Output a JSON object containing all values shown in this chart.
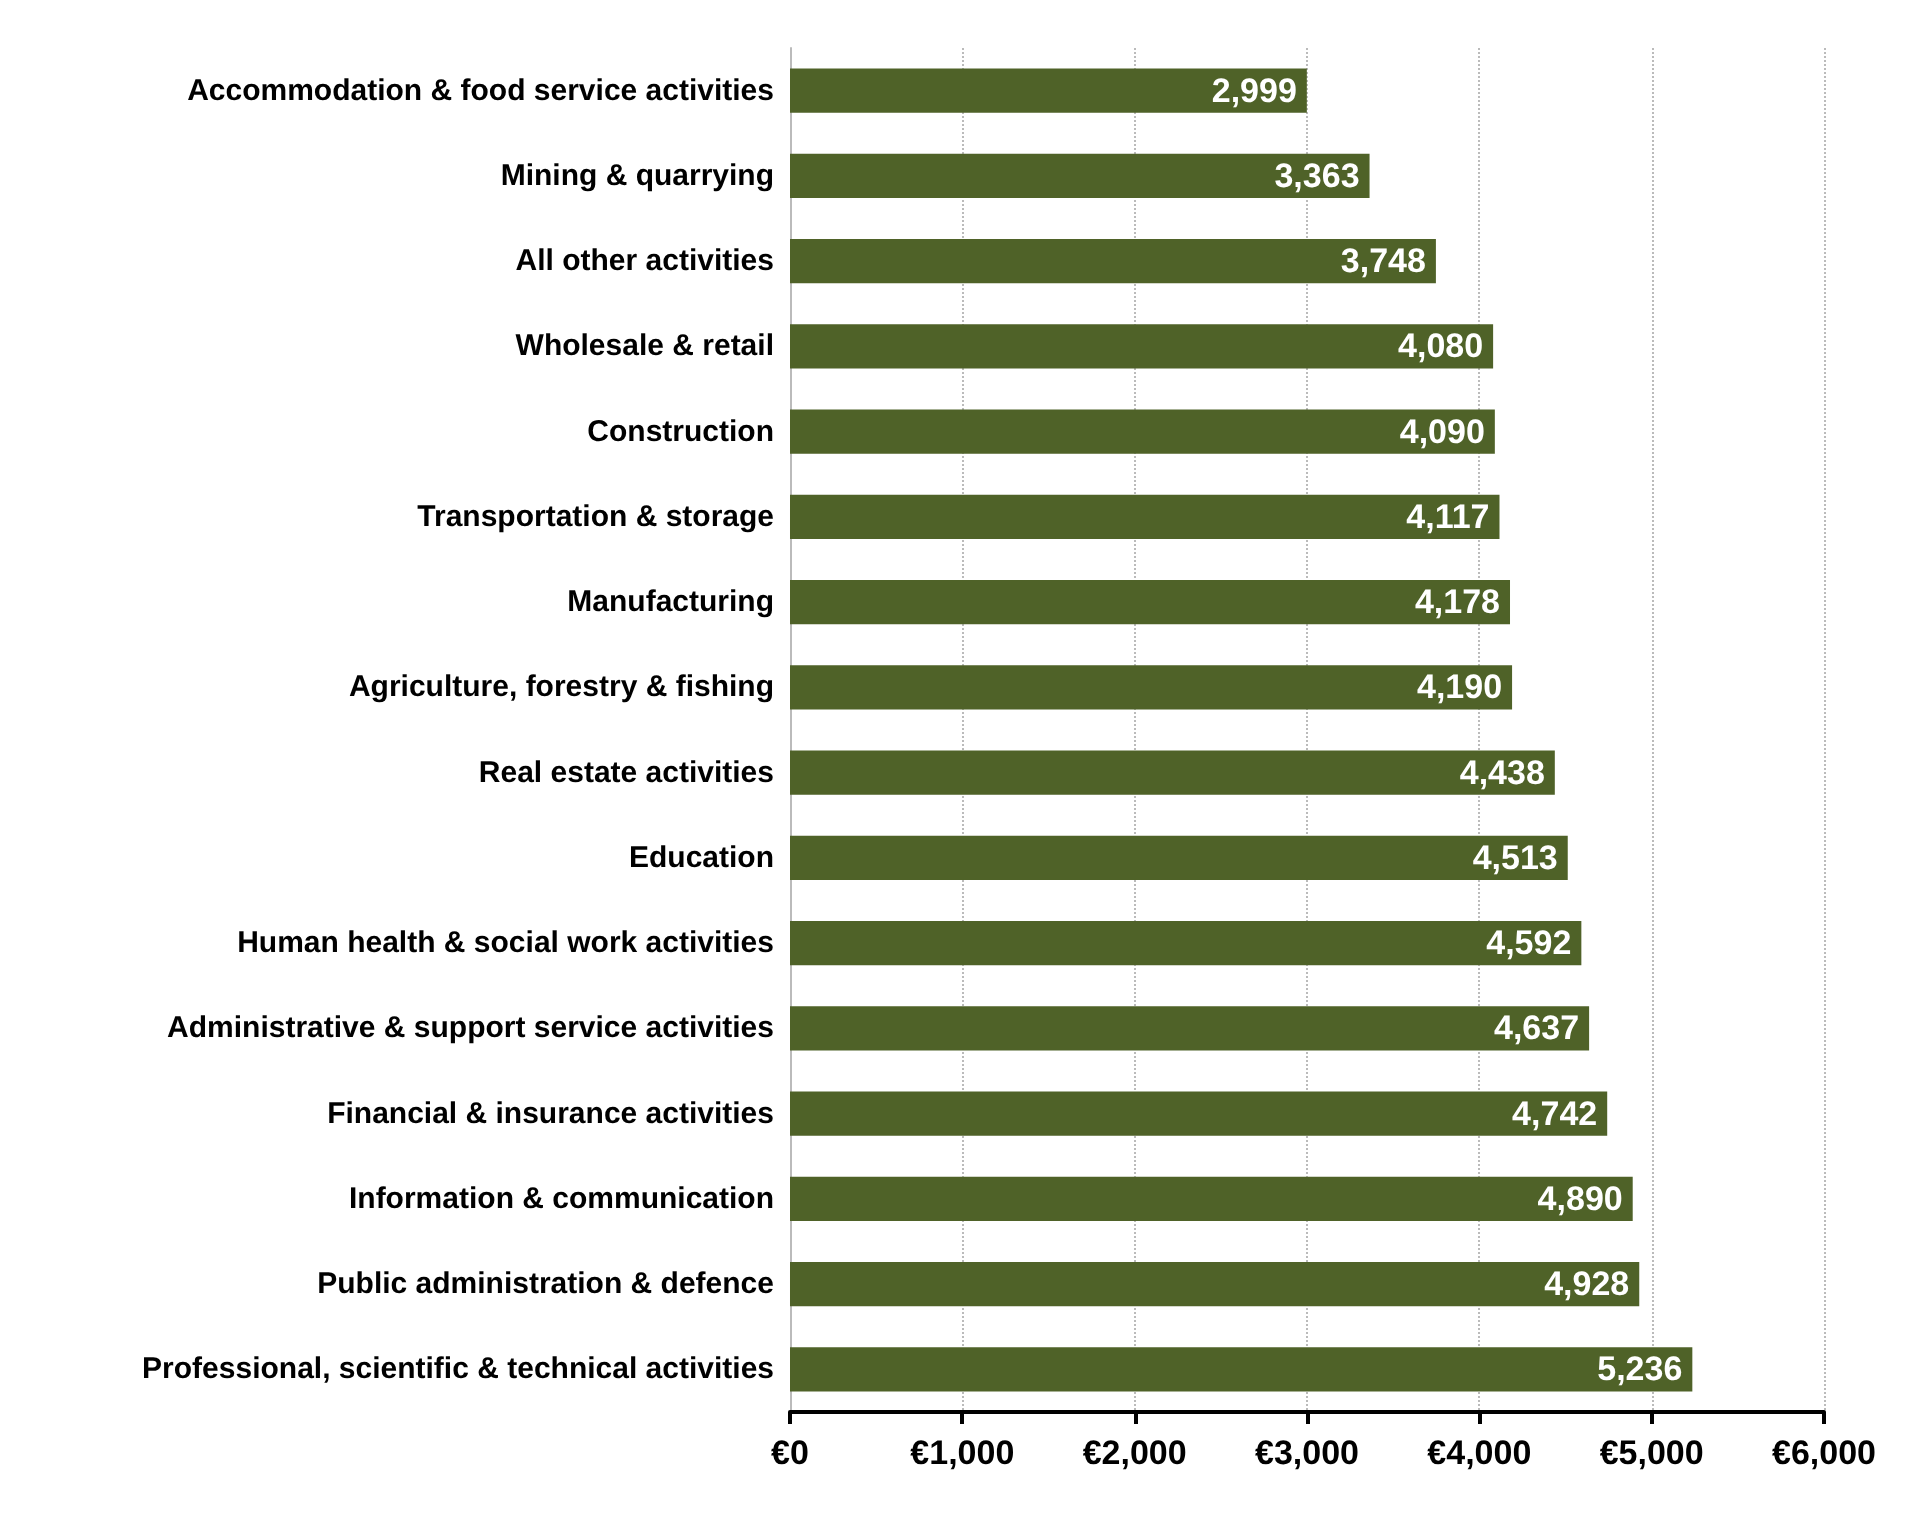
{
  "chart_data": {
    "type": "bar",
    "orientation": "horizontal",
    "categories": [
      "Accommodation & food service activities",
      "Mining & quarrying",
      "All other activities",
      "Wholesale & retail",
      "Construction",
      "Transportation & storage",
      "Manufacturing",
      "Agriculture, forestry & fishing",
      "Real estate activities",
      "Education",
      "Human health & social work activities",
      "Administrative & support service activities",
      "Financial & insurance activities",
      "Information & communication",
      "Public administration & defence",
      "Professional, scientific & technical activities"
    ],
    "values": [
      2999,
      3363,
      3748,
      4080,
      4090,
      4117,
      4178,
      4190,
      4438,
      4513,
      4592,
      4637,
      4742,
      4890,
      4928,
      5236
    ],
    "value_labels": [
      "2,999",
      "3,363",
      "3,748",
      "4,080",
      "4,090",
      "4,117",
      "4,178",
      "4,190",
      "4,438",
      "4,513",
      "4,592",
      "4,637",
      "4,742",
      "4,890",
      "4,928",
      "5,236"
    ],
    "color": "#4f6228",
    "xlim": [
      0,
      6000
    ],
    "xticks": [
      {
        "value": 0,
        "label": "€0"
      },
      {
        "value": 1000,
        "label": "€1,000"
      },
      {
        "value": 2000,
        "label": "€2,000"
      },
      {
        "value": 3000,
        "label": "€3,000"
      },
      {
        "value": 4000,
        "label": "€4,000"
      },
      {
        "value": 5000,
        "label": "€5,000"
      },
      {
        "value": 6000,
        "label": "€6,000"
      }
    ],
    "grid": "x"
  }
}
